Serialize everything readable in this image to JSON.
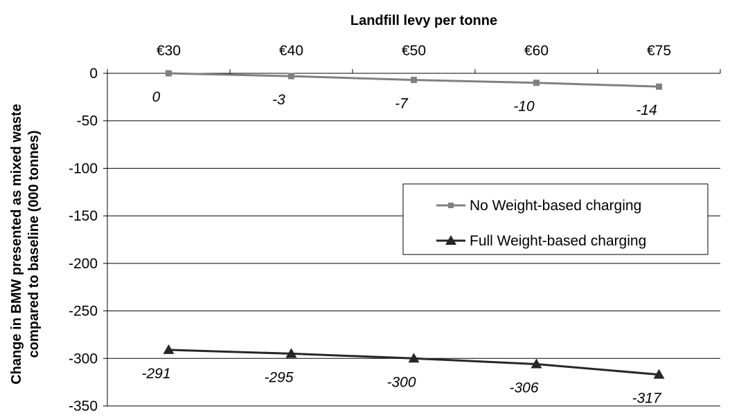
{
  "chart_data": {
    "type": "line",
    "title": "Landfill levy per tonne",
    "ylabel_line1": "Change in BMW presented as mixed waste",
    "ylabel_line2": "compared to baseline (000 tonnes)",
    "categories": [
      "€30",
      "€40",
      "€50",
      "€60",
      "€75"
    ],
    "ylim": [
      -350,
      0
    ],
    "yticks": [
      0,
      -50,
      -100,
      -150,
      -200,
      -250,
      -300,
      -350
    ],
    "grid": true,
    "legend_position": "right",
    "series": [
      {
        "name": "No Weight-based charging",
        "values": [
          0,
          -3,
          -7,
          -10,
          -14
        ],
        "labels": [
          "0",
          "-3",
          "-7",
          "-10",
          "-14"
        ],
        "color": "#808080",
        "marker": "square"
      },
      {
        "name": "Full Weight-based charging",
        "values": [
          -291,
          -295,
          -300,
          -306,
          -317
        ],
        "labels": [
          "-291",
          "-295",
          "-300",
          "-306",
          "-317"
        ],
        "color": "#262626",
        "marker": "triangle"
      }
    ]
  }
}
